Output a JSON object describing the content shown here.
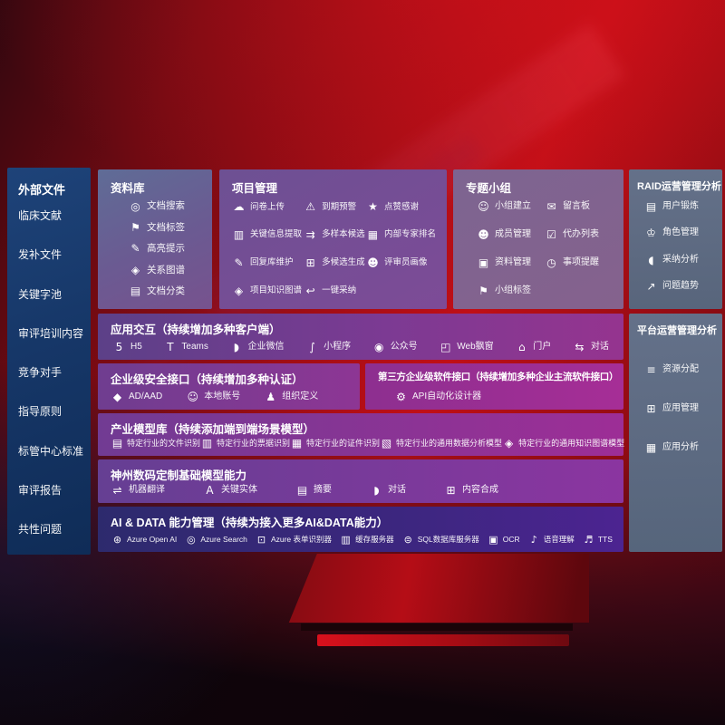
{
  "theme": {
    "background_red": "#c00f17",
    "sidebar_blue": "#163768",
    "panel_purple": "#7c3a93",
    "panel_gray_blue": "#5c6e85",
    "ai_row_indigo": "#2d2a6d",
    "text": "#ffffff"
  },
  "sidebar": {
    "title": "外部文件",
    "items": [
      {
        "label": "临床文献"
      },
      {
        "label": "发补文件"
      },
      {
        "label": "关键字池"
      },
      {
        "label": "审评培训内容"
      },
      {
        "label": "竞争对手"
      },
      {
        "label": "指导原则"
      },
      {
        "label": "标管中心标准"
      },
      {
        "label": "审评报告"
      },
      {
        "label": "共性问题"
      }
    ]
  },
  "panels": {
    "library": {
      "title": "资料库",
      "items": [
        {
          "icon": "◎",
          "icon_name": "doc-search-icon",
          "label": "文档搜索"
        },
        {
          "icon": "⚑",
          "icon_name": "doc-tag-icon",
          "label": "文档标签"
        },
        {
          "icon": "✎",
          "icon_name": "highlight-icon",
          "label": "高亮提示"
        },
        {
          "icon": "◈",
          "icon_name": "relation-graph-icon",
          "label": "关系图谱"
        },
        {
          "icon": "▤",
          "icon_name": "doc-category-icon",
          "label": "文档分类"
        }
      ]
    },
    "project": {
      "title": "项目管理",
      "items": [
        {
          "icon": "☁",
          "icon_name": "cloud-upload-icon",
          "label": "问卷上传"
        },
        {
          "icon": "⚠",
          "icon_name": "alarm-icon",
          "label": "到期预警"
        },
        {
          "icon": "★",
          "icon_name": "thumbs-up-icon",
          "label": "点赞感谢"
        },
        {
          "icon": "▥",
          "icon_name": "info-extract-icon",
          "label": "关键信息提取"
        },
        {
          "icon": "⇉",
          "icon_name": "multi-sample-icon",
          "label": "多样本候选"
        },
        {
          "icon": "▦",
          "icon_name": "expert-ranking-icon",
          "label": "内部专家排名"
        },
        {
          "icon": "✎",
          "icon_name": "reply-maintain-icon",
          "label": "回复库维护"
        },
        {
          "icon": "⊞",
          "icon_name": "multi-candidate-icon",
          "label": "多候选生成"
        },
        {
          "icon": "☻",
          "icon_name": "reviewer-portrait-icon",
          "label": "评审员画像"
        },
        {
          "icon": "◈",
          "icon_name": "knowledge-graph-icon",
          "label": "项目知识图谱"
        },
        {
          "icon": "↩",
          "icon_name": "one-click-adopt-icon",
          "label": "一键采纳"
        }
      ]
    },
    "groups": {
      "title": "专题小组",
      "items": [
        {
          "icon": "☺",
          "icon_name": "group-create-icon",
          "label": "小组建立"
        },
        {
          "icon": "✉",
          "icon_name": "message-board-icon",
          "label": "留言板"
        },
        {
          "icon": "☻",
          "icon_name": "member-manage-icon",
          "label": "成员管理"
        },
        {
          "icon": "☑",
          "icon_name": "todo-list-icon",
          "label": "代办列表"
        },
        {
          "icon": "▣",
          "icon_name": "material-manage-icon",
          "label": "资料管理"
        },
        {
          "icon": "◷",
          "icon_name": "reminder-bell-icon",
          "label": "事项提醒"
        },
        {
          "icon": "⚑",
          "icon_name": "group-tag-icon",
          "label": "小组标签"
        }
      ]
    },
    "raid": {
      "title": "RAID运营管理分析",
      "items": [
        {
          "icon": "▤",
          "icon_name": "user-card-icon",
          "label": "用户锻炼"
        },
        {
          "icon": "♔",
          "icon_name": "role-manage-icon",
          "label": "角色管理"
        },
        {
          "icon": "◖",
          "icon_name": "adoption-analysis-icon",
          "label": "采纳分析"
        },
        {
          "icon": "↗",
          "icon_name": "issue-trend-icon",
          "label": "问题趋势"
        }
      ]
    },
    "platform": {
      "title": "平台运营管理分析",
      "items": [
        {
          "icon": "≡",
          "icon_name": "resource-allocation-icon",
          "label": "资源分配"
        },
        {
          "icon": "⊞",
          "icon_name": "app-manage-icon",
          "label": "应用管理"
        },
        {
          "icon": "▦",
          "icon_name": "app-analysis-icon",
          "label": "应用分析"
        }
      ]
    }
  },
  "rows": {
    "interaction": {
      "title": "应用交互（持续增加多种客户端）",
      "items": [
        {
          "icon": "5",
          "icon_name": "html5-icon",
          "label": "H5"
        },
        {
          "icon": "T",
          "icon_name": "teams-icon",
          "label": "Teams"
        },
        {
          "icon": "◗",
          "icon_name": "wechat-work-icon",
          "label": "企业微信"
        },
        {
          "icon": "∫",
          "icon_name": "miniprogram-icon",
          "label": "小程序"
        },
        {
          "icon": "◉",
          "icon_name": "official-account-icon",
          "label": "公众号"
        },
        {
          "icon": "◰",
          "icon_name": "web-window-icon",
          "label": "Web飘窗"
        },
        {
          "icon": "⌂",
          "icon_name": "portal-icon",
          "label": "门户"
        },
        {
          "icon": "⇆",
          "icon_name": "chat-icon",
          "label": "对话"
        }
      ]
    },
    "security": {
      "title": "企业级安全接口（持续增加多种认证）",
      "items": [
        {
          "icon": "◆",
          "icon_name": "ad-aad-icon",
          "label": "AD/AAD"
        },
        {
          "icon": "☺",
          "icon_name": "local-account-icon",
          "label": "本地账号"
        },
        {
          "icon": "♟",
          "icon_name": "org-define-icon",
          "label": "组织定义"
        }
      ]
    },
    "thirdparty": {
      "title": "第三方企业级软件接口（持续增加多种企业主流软件接口）",
      "items": [
        {
          "icon": "⚙",
          "icon_name": "api-designer-icon",
          "label": "API自动化设计器"
        }
      ]
    },
    "models": {
      "title": "产业模型库（持续添加端到端场景模型）",
      "items": [
        {
          "icon": "▤",
          "icon_name": "file-recognition-icon",
          "label": "特定行业的文件识别"
        },
        {
          "icon": "▥",
          "icon_name": "receipt-recognition-icon",
          "label": "特定行业的票据识别"
        },
        {
          "icon": "▦",
          "icon_name": "id-recognition-icon",
          "label": "特定行业的证件识别"
        },
        {
          "icon": "▧",
          "icon_name": "data-analysis-model-icon",
          "label": "特定行业的通用数据分析模型"
        },
        {
          "icon": "◈",
          "icon_name": "knowledge-graph-model-icon",
          "label": "特定行业的通用知识图谱模型"
        }
      ]
    },
    "base": {
      "title": "神州数码定制基础模型能力",
      "items": [
        {
          "icon": "⇌",
          "icon_name": "translate-icon",
          "label": "机器翻译"
        },
        {
          "icon": "A",
          "icon_name": "key-entity-icon",
          "label": "关键实体"
        },
        {
          "icon": "▤",
          "icon_name": "summary-icon",
          "label": "摘要"
        },
        {
          "icon": "◗",
          "icon_name": "dialog-icon",
          "label": "对话"
        },
        {
          "icon": "⊞",
          "icon_name": "content-compose-icon",
          "label": "内容合成"
        }
      ]
    },
    "aidata": {
      "title": "AI & DATA 能力管理（持续为接入更多AI&DATA能力）",
      "items": [
        {
          "icon": "⊛",
          "icon_name": "azure-openai-icon",
          "label": "Azure Open AI"
        },
        {
          "icon": "◎",
          "icon_name": "azure-search-icon",
          "label": "Azure Search"
        },
        {
          "icon": "⊡",
          "icon_name": "form-recognizer-icon",
          "label": "Azure 表单识别器"
        },
        {
          "icon": "▥",
          "icon_name": "cache-server-icon",
          "label": "缓存服务器"
        },
        {
          "icon": "⊜",
          "icon_name": "sql-server-icon",
          "label": "SQL数据库服务器"
        },
        {
          "icon": "▣",
          "icon_name": "ocr-icon",
          "label": "OCR"
        },
        {
          "icon": "♪",
          "icon_name": "speech-understanding-icon",
          "label": "语音理解"
        },
        {
          "icon": "♬",
          "icon_name": "tts-icon",
          "label": "TTS"
        }
      ]
    }
  }
}
